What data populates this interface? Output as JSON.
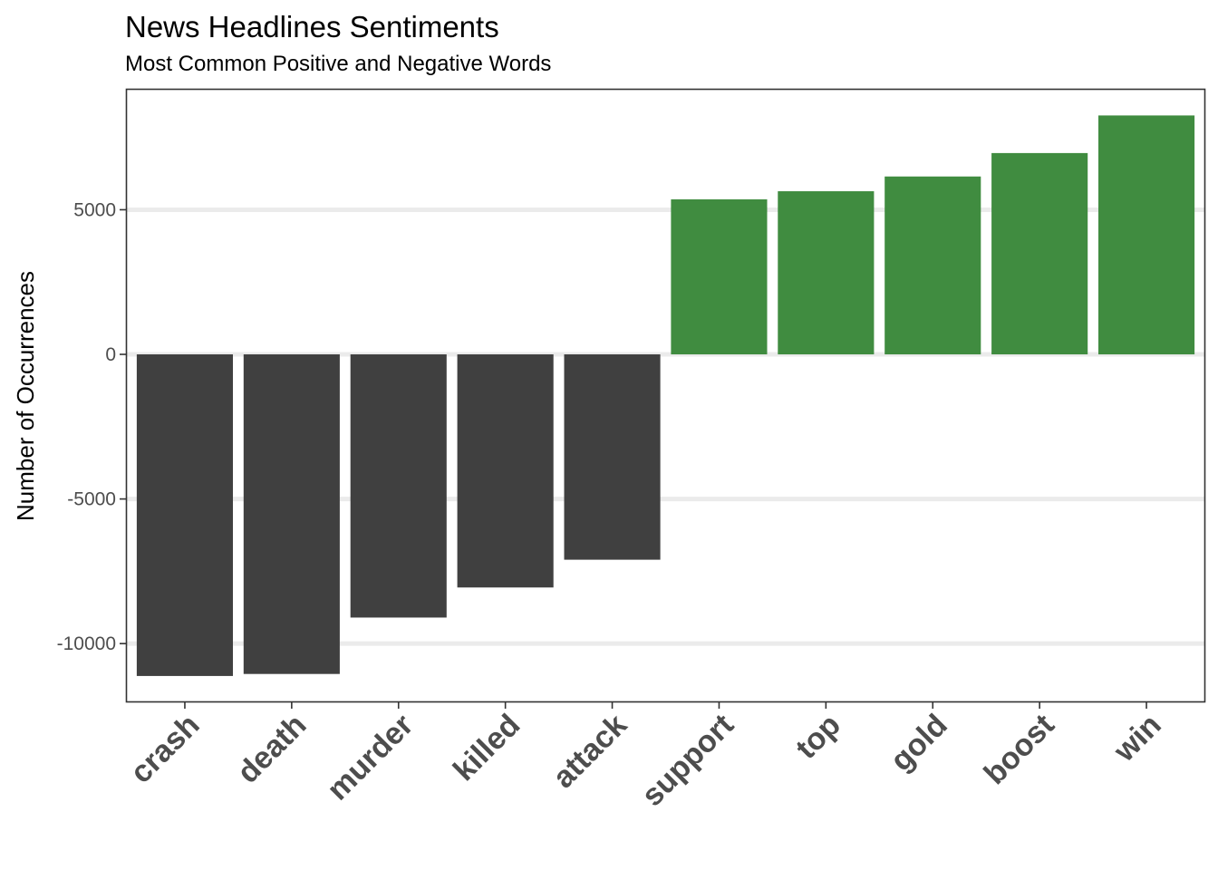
{
  "chart_data": {
    "type": "bar",
    "title": "News Headlines Sentiments",
    "subtitle": "Most Common Positive and Negative Words",
    "xlabel": "",
    "ylabel": "Number of Occurrences",
    "categories": [
      "crash",
      "death",
      "murder",
      "killed",
      "attack",
      "support",
      "top",
      "gold",
      "boost",
      "win"
    ],
    "values": [
      -11120,
      -11050,
      -9100,
      -8060,
      -7100,
      5360,
      5640,
      6150,
      6960,
      8260
    ],
    "sentiment": [
      "negative",
      "negative",
      "negative",
      "negative",
      "negative",
      "positive",
      "positive",
      "positive",
      "positive",
      "positive"
    ],
    "colors": {
      "negative": "#404040",
      "positive": "#408c40",
      "gridline": "#ebebeb",
      "panel_border": "#333333",
      "tick_text": "#4d4d4d"
    },
    "yticks": [
      5000,
      0,
      -5000,
      -10000
    ],
    "yticklabels": [
      "5000",
      "0",
      "-5000",
      "-10000"
    ],
    "ylim": [
      -12000,
      9150
    ],
    "grid": true,
    "legend": "none"
  }
}
